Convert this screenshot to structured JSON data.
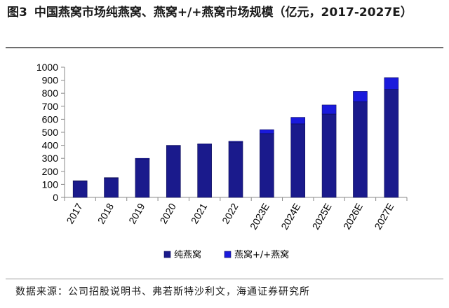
{
  "title": {
    "fig_label": "图3",
    "text": "中国燕窝市场纯燕窝、燕窝+/+燕窝市场规模（亿元，2017-2027E）"
  },
  "source": "数据来源：公司招股说明书、弗若斯特沙利文，海通证券研究所",
  "chart_data": {
    "type": "bar",
    "stacked": true,
    "categories": [
      "2017",
      "2018",
      "2019",
      "2020",
      "2021",
      "2022",
      "2023E",
      "2024E",
      "2025E",
      "2026E",
      "2027E"
    ],
    "series": [
      {
        "name": "纯燕窝",
        "color": "#1a1a8c",
        "values": [
          125,
          148,
          295,
          395,
          405,
          425,
          490,
          565,
          640,
          735,
          830
        ]
      },
      {
        "name": "燕窝+/+燕窝",
        "color": "#1a1adc",
        "values": [
          3,
          4,
          5,
          5,
          6,
          6,
          30,
          50,
          70,
          80,
          90
        ]
      }
    ],
    "ylim": [
      0,
      1000
    ],
    "yticks": [
      0,
      100,
      200,
      300,
      400,
      500,
      600,
      700,
      800,
      900,
      1000
    ],
    "xlabel": "",
    "ylabel": "",
    "grid": false,
    "legend_position": "bottom"
  }
}
